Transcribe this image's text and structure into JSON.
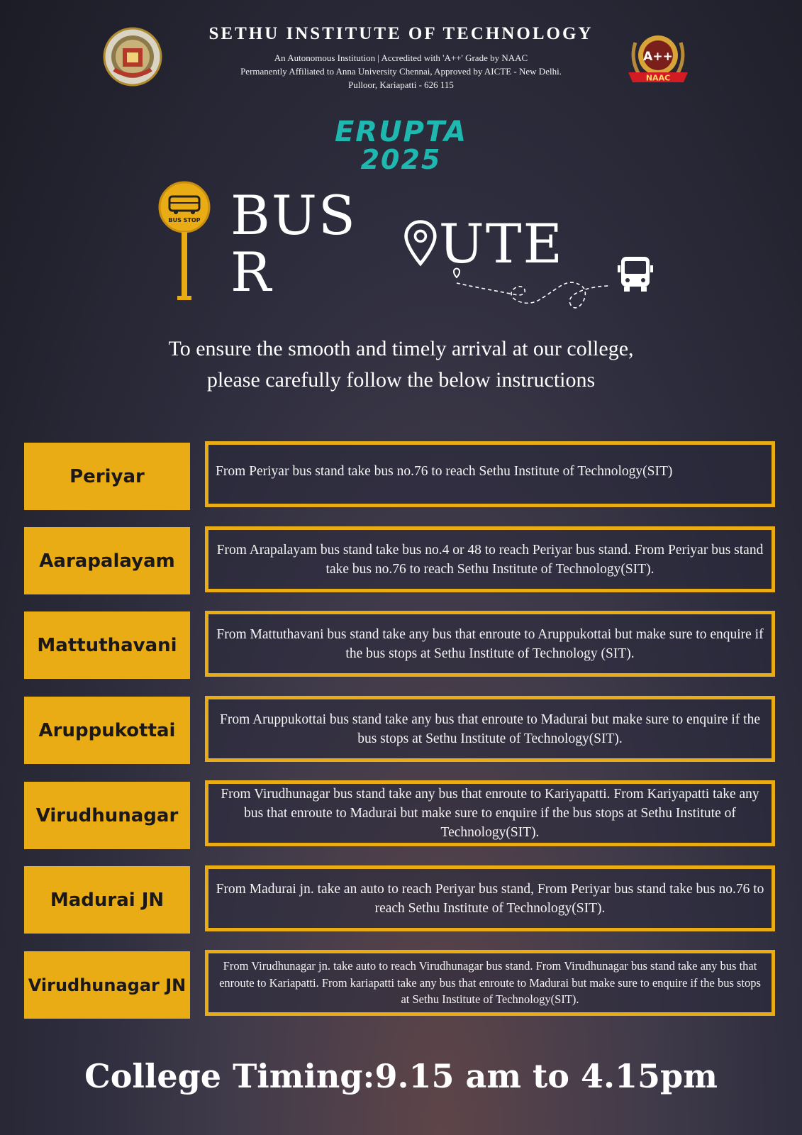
{
  "header": {
    "college_name": "SETHU INSTITUTE OF TECHNOLOGY",
    "line1": "An Autonomous Institution | Accredited with 'A++' Grade by NAAC",
    "line2": "Permanently Affiliated to Anna University Chennai, Approved by AICTE - New Delhi.",
    "line3": "Pulloor, Kariapatti - 626 115",
    "naac_badge_top": "A++",
    "naac_badge_ribbon": "NAAC"
  },
  "event": {
    "name": "ERUPTA",
    "year": "2025"
  },
  "bus_stop_sign": "BUS STOP",
  "title": {
    "part1": "BUS R",
    "part2": "UTE"
  },
  "intro": {
    "line1": "To ensure the smooth and timely arrival at our college,",
    "line2": "please carefully follow the below instructions"
  },
  "routes": [
    {
      "place": "Periyar",
      "instruction": "From Periyar bus stand take bus no.76 to reach Sethu Institute of Technology(SIT)"
    },
    {
      "place": "Aarapalayam",
      "instruction": "From Arapalayam bus stand take bus no.4 or 48 to reach Periyar bus stand. From Periyar bus stand take bus no.76 to reach Sethu Institute of Technology(SIT)."
    },
    {
      "place": "Mattuthavani",
      "instruction": "From Mattuthavani bus stand take any bus that enroute to Aruppukottai but make sure to enquire if the bus stops at Sethu Institute of Technology (SIT)."
    },
    {
      "place": "Aruppukottai",
      "instruction": "From Aruppukottai bus stand take any bus that enroute to Madurai but make sure to enquire if the bus stops at Sethu Institute of Technology(SIT)."
    },
    {
      "place": "Virudhunagar",
      "instruction": "From Virudhunagar bus stand take any bus that enroute to Kariyapatti. From Kariyapatti take any bus that enroute to Madurai but make sure to enquire if the bus stops at Sethu Institute of Technology(SIT)."
    },
    {
      "place": "Madurai JN",
      "instruction": "From Madurai jn. take an auto to reach Periyar bus stand, From Periyar bus stand take bus no.76 to reach Sethu Institute of Technology(SIT)."
    },
    {
      "place": "Virudhunagar JN",
      "instruction": "From Virudhunagar jn. take auto to reach Virudhunagar bus stand. From Virudhunagar bus stand take any bus that enroute to Kariapatti. From kariapatti take any bus that enroute to Madurai but make sure to enquire if the bus stops at Sethu Institute of Technology(SIT)."
    }
  ],
  "footer": {
    "timing": "College Timing:9.15 am to 4.15pm"
  },
  "colors": {
    "accent": "#e9ac14",
    "event": "#1fb8b0"
  }
}
